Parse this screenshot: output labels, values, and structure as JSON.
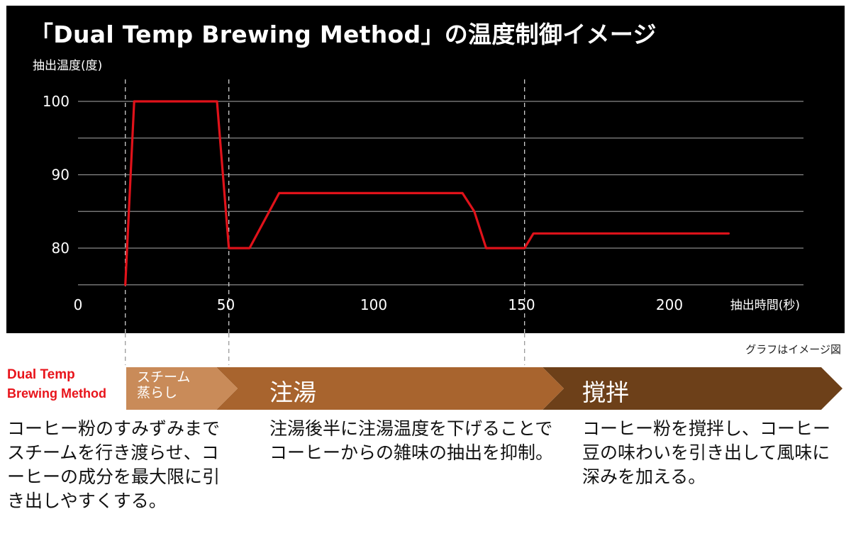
{
  "chart_data": {
    "type": "line",
    "title": "「Dual Temp Brewing Method」の温度制御イメージ",
    "ylabel": "抽出温度(度)",
    "xlabel": "抽出時間(秒)",
    "xlim": [
      0,
      220
    ],
    "ylim": [
      75,
      105
    ],
    "x_ticks": [
      "0",
      "50",
      "100",
      "150",
      "200"
    ],
    "y_ticks": [
      "100",
      "90",
      "80"
    ],
    "grid": "horizontal",
    "line_color": "#e0121a",
    "phase_boundaries_x": [
      16,
      51,
      151
    ],
    "series": [
      {
        "x": [
          16,
          19,
          47,
          51,
          58,
          68,
          130,
          134,
          138,
          151,
          154,
          220
        ],
        "y": [
          75,
          100,
          100,
          80,
          80,
          87.5,
          87.5,
          85,
          80,
          80,
          82,
          82
        ]
      }
    ]
  },
  "note": "グラフはイメージ図",
  "method_label": {
    "line1": "Dual Temp",
    "line2": "Brewing Method"
  },
  "phases": [
    {
      "name_line1": "スチーム",
      "name_line2": "蒸らし",
      "color": "#c98b59",
      "description": "コーヒー粉のすみずみまでスチームを行き渡らせ、コーヒーの成分を最大限に引き出しやすくする。"
    },
    {
      "name": "注湯",
      "color": "#a8642e",
      "description": "注湯後半に注湯温度を下げることでコーヒーからの雑味の抽出を抑制。"
    },
    {
      "name": "撹拌",
      "color": "#6d4019",
      "description": "コーヒー粉を撹拌し、コーヒー豆の味わいを引き出して風味に深みを加える。"
    }
  ]
}
